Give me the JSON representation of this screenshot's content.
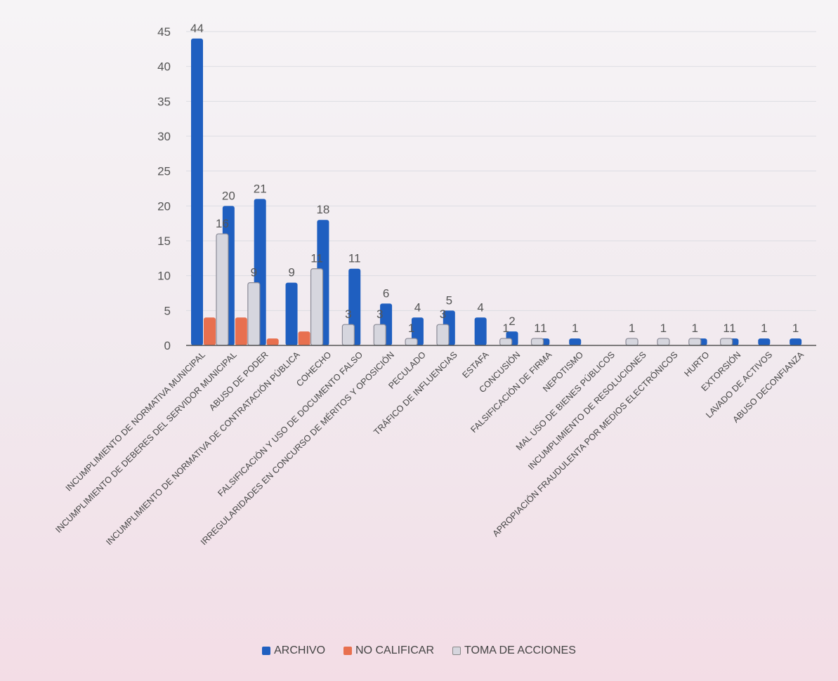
{
  "chart_data": {
    "type": "bar",
    "ylim": [
      0,
      45
    ],
    "yticks": [
      0,
      5,
      10,
      15,
      20,
      25,
      30,
      35,
      40,
      45
    ],
    "grid": true,
    "legend_position": "bottom",
    "categories": [
      "INCUMPLIMIENTO DE NORMATIVA MUNICIPAL",
      "INCUMPLIMIENTO DE DEBERES DEL SERVIDOR MUNICIPAL",
      "ABUSO DE PODER",
      "INCUMPLIMIENTO DE NORMATIVA DE CONTRATACIÓN PÚBLICA",
      "COHECHO",
      "FALSIFICACIÓN Y USO DE DOCUMENTO FALSO",
      "IRREGULARIDADES EN CONCURSO DE MÉRITOS Y OPOSICIÓN",
      "PECULADO",
      "TRÁFICO DE INFLUENCIAS",
      "ESTAFA",
      "CONCUSIÓN",
      "FALSIFICACIÓN DE FIRMA",
      "NEPOTISMO",
      "MAL USO DE BIENES PÚBLICOS",
      "INCUMPLIMIENTO DE RESOLUCIONES",
      "APROPIACIÓN FRAUDULENTA POR MEDIOS ELECTRÓNICOS",
      "HURTO",
      "EXTORSIÓN",
      "LAVADO DE ACTIVOS",
      "ABUSO DECONFIANZA"
    ],
    "series": [
      {
        "name": "ARCHIVO",
        "color": "#1f5fc0",
        "values": [
          44,
          20,
          21,
          9,
          18,
          11,
          6,
          4,
          5,
          4,
          2,
          1,
          1,
          null,
          null,
          null,
          1,
          1,
          1,
          1
        ]
      },
      {
        "name": "NO CALIFICAR",
        "color": "#e8704f",
        "values": [
          4,
          4,
          1,
          2,
          null,
          null,
          null,
          null,
          null,
          null,
          null,
          null,
          null,
          null,
          null,
          null,
          null,
          null,
          null,
          null
        ]
      },
      {
        "name": "TOMA DE ACCIONES",
        "color": "#d6d6de",
        "values": [
          16,
          9,
          null,
          11,
          3,
          3,
          1,
          3,
          null,
          1,
          1,
          null,
          null,
          1,
          1,
          1,
          1,
          null,
          null,
          null
        ]
      }
    ],
    "data_labels": [
      {
        "text": "44",
        "series": 0,
        "cat": 0
      },
      {
        "text": "16",
        "series": 2,
        "cat": 0
      },
      {
        "text": "20",
        "series": 0,
        "cat": 1
      },
      {
        "text": "9",
        "series": 2,
        "cat": 1
      },
      {
        "text": "21",
        "series": 0,
        "cat": 2
      },
      {
        "text": "9",
        "series": 0,
        "cat": 3
      },
      {
        "text": "11",
        "series": 2,
        "cat": 3
      },
      {
        "text": "18",
        "series": 0,
        "cat": 4
      },
      {
        "text": "3",
        "series": 2,
        "cat": 4
      },
      {
        "text": "11",
        "series": 0,
        "cat": 5
      },
      {
        "text": "3",
        "series": 2,
        "cat": 5
      },
      {
        "text": "6",
        "series": 0,
        "cat": 6
      },
      {
        "text": "1",
        "series": 2,
        "cat": 6
      },
      {
        "text": "4",
        "series": 0,
        "cat": 7
      },
      {
        "text": "3",
        "series": 2,
        "cat": 7
      },
      {
        "text": "5",
        "series": 0,
        "cat": 8
      },
      {
        "text": "4",
        "series": 0,
        "cat": 9
      },
      {
        "text": "1",
        "series": 2,
        "cat": 9
      },
      {
        "text": "2",
        "series": 0,
        "cat": 10
      },
      {
        "text": "1",
        "series": 2,
        "cat": 10
      },
      {
        "text": "1",
        "series": 0,
        "cat": 11
      },
      {
        "text": "1",
        "series": 0,
        "cat": 12
      },
      {
        "text": "1",
        "series": 2,
        "cat": 13
      },
      {
        "text": "1",
        "series": 2,
        "cat": 14
      },
      {
        "text": "1",
        "series": 2,
        "cat": 15
      },
      {
        "text": "1",
        "series": 2,
        "cat": 16
      },
      {
        "text": "1",
        "series": 0,
        "cat": 17
      },
      {
        "text": "1",
        "series": 0,
        "cat": 18
      },
      {
        "text": "1",
        "series": 0,
        "cat": 19
      }
    ]
  }
}
